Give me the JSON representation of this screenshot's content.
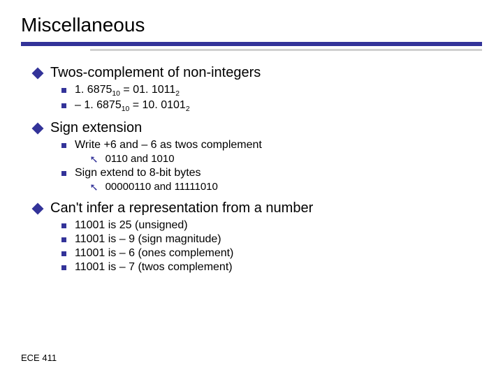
{
  "title": "Miscellaneous",
  "colors": {
    "accent": "#333399",
    "text": "#000000",
    "background": "#ffffff",
    "shadow": "#d0d0d0"
  },
  "items": [
    {
      "level": 1,
      "text": "Twos-complement of non-integers"
    },
    {
      "level": 2,
      "html": "1. 6875<span class='sub'>10</span> = 01. 1011<span class='sub'>2</span>"
    },
    {
      "level": 2,
      "html": "– 1. 6875<span class='sub'>10</span> = 10. 0101<span class='sub'>2</span>"
    },
    {
      "level": 1,
      "text": "Sign extension"
    },
    {
      "level": 2,
      "text": "Write +6 and – 6 as twos complement"
    },
    {
      "level": 3,
      "text": "0110 and 1010"
    },
    {
      "level": 2,
      "text": "Sign extend to 8-bit bytes"
    },
    {
      "level": 3,
      "text": "00000110 and 11111010"
    },
    {
      "level": 1,
      "text": "Can't infer a representation from a number"
    },
    {
      "level": 2,
      "text": "11001 is 25 (unsigned)"
    },
    {
      "level": 2,
      "text": "11001 is – 9 (sign magnitude)"
    },
    {
      "level": 2,
      "text": "11001 is – 6 (ones complement)"
    },
    {
      "level": 2,
      "text": "11001 is – 7 (twos complement)"
    }
  ],
  "footer": "ECE 411"
}
